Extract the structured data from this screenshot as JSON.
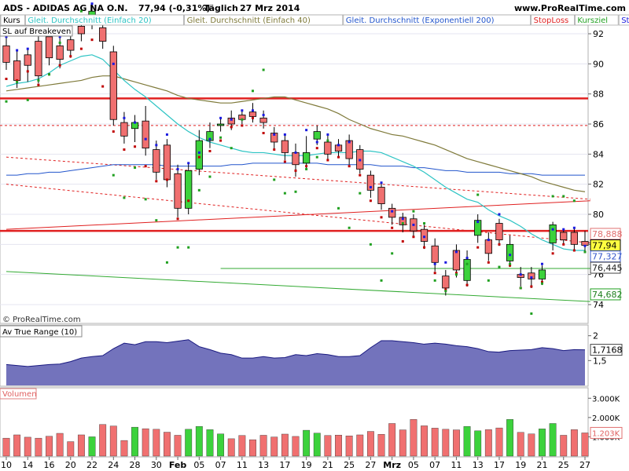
{
  "header": {
    "symbol": "ADS - ADIDAS AG NA O.N.",
    "price": "77,94 (-0,31%)",
    "interval": "Täglich",
    "date": "27 Mrz 2014",
    "site": "www.ProRealTime.com"
  },
  "legend": [
    {
      "label": "Kurs",
      "color": "#000000"
    },
    {
      "label": "Gleit. Durchschnitt (Einfach 20)",
      "color": "#2ec4c4"
    },
    {
      "label": "Gleit. Durchschnitt (Einfach 40)",
      "color": "#7f7a3a"
    },
    {
      "label": "Gleit. Durchschnitt (Exponentiell 200)",
      "color": "#2255cc"
    },
    {
      "label": "StopLoss",
      "color": "#e02020"
    },
    {
      "label": "Kursziel",
      "color": "#22a022"
    },
    {
      "label": "StopBuy",
      "color": "#2020e0"
    }
  ],
  "sl_label": "SL auf Breakeven",
  "copyright": "© ProRealTime.com",
  "price_badges": {
    "last": "77,94",
    "b1": "78,888",
    "b2": "77,327",
    "b3": "76,445",
    "b4": "74,682"
  },
  "price_ticks": [
    "92",
    "90",
    "88",
    "86",
    "84",
    "82",
    "80",
    "78",
    "76",
    "74"
  ],
  "atr": {
    "title": "Av True Range (10)",
    "value": "1,7168",
    "ticks": [
      "2",
      "1,5"
    ]
  },
  "volume": {
    "title": "Volumen",
    "value": "1.203K",
    "ticks": [
      "3.000K",
      "2.000K",
      "1.000K"
    ]
  },
  "x_labels": [
    "10",
    "14",
    "16",
    "20",
    "22",
    "24",
    "28",
    "30",
    "Feb",
    "05",
    "07",
    "11",
    "13",
    "17",
    "19",
    "21",
    "25",
    "27",
    "Mrz",
    "05",
    "07",
    "11",
    "13",
    "17",
    "19",
    "21",
    "25",
    "27"
  ],
  "colors": {
    "up": "#3cd23c",
    "down": "#f07070",
    "sma20": "#2ec4c4",
    "sma40": "#7f7a3a",
    "ema200": "#2255cc",
    "red": "#e02020",
    "green": "#33aa33",
    "atr_fill": "#5b5bb0"
  },
  "chart_data": {
    "type": "candlestick",
    "dates": [
      "10",
      "13",
      "14",
      "15",
      "16",
      "17",
      "20",
      "21",
      "22",
      "23",
      "24",
      "27",
      "28",
      "29",
      "30",
      "31",
      "Feb",
      "04",
      "05",
      "06",
      "07",
      "10",
      "11",
      "12",
      "13",
      "14",
      "17",
      "18",
      "19",
      "20",
      "21",
      "24",
      "25",
      "26",
      "27",
      "28",
      "Mrz",
      "04",
      "05",
      "06",
      "07",
      "10",
      "11",
      "12",
      "13",
      "14",
      "17",
      "18",
      "19",
      "20",
      "21",
      "24",
      "25",
      "26",
      "27"
    ],
    "open": [
      91.2,
      90.2,
      90.6,
      91.5,
      91.8,
      91.2,
      91.6,
      92.5,
      92.8,
      92.4,
      90.8,
      86.1,
      85.7,
      86.2,
      84.3,
      84.6,
      82.7,
      80.4,
      83.0,
      84.9,
      85.9,
      86.4,
      86.6,
      86.8,
      86.4,
      85.4,
      84.9,
      84.1,
      83.4,
      85.0,
      84.8,
      84.6,
      84.9,
      84.3,
      82.6,
      81.8,
      80.4,
      79.8,
      79.7,
      79.0,
      77.9,
      75.9,
      77.6,
      75.6,
      78.6,
      78.3,
      79.4,
      76.9,
      76.0,
      76.1,
      75.7,
      78.1,
      78.8,
      78.8,
      78.2
    ],
    "close": [
      90.1,
      88.9,
      89.9,
      89.2,
      90.4,
      90.3,
      90.9,
      92.0,
      93.5,
      91.5,
      86.3,
      85.2,
      86.1,
      84.4,
      82.8,
      82.3,
      80.4,
      82.9,
      84.9,
      85.5,
      86.0,
      86.0,
      86.3,
      86.5,
      86.1,
      84.8,
      84.1,
      83.3,
      84.1,
      85.5,
      84.0,
      84.2,
      83.7,
      83.0,
      81.6,
      80.7,
      79.8,
      79.3,
      78.9,
      78.2,
      76.8,
      75.1,
      76.3,
      77.0,
      79.6,
      77.4,
      78.3,
      78.0,
      75.8,
      75.7,
      76.3,
      79.3,
      78.3,
      78.0,
      77.94
    ],
    "high": [
      91.8,
      90.9,
      91.0,
      92.0,
      92.3,
      91.8,
      92.3,
      93.0,
      93.9,
      93.0,
      91.2,
      86.8,
      86.6,
      87.2,
      84.9,
      85.0,
      83.3,
      83.4,
      85.6,
      86.1,
      86.4,
      86.9,
      86.9,
      87.4,
      86.9,
      85.8,
      85.3,
      84.7,
      85.2,
      85.9,
      85.3,
      85.0,
      85.3,
      84.6,
      82.9,
      82.1,
      80.7,
      80.1,
      80.0,
      79.3,
      78.4,
      76.3,
      78.0,
      77.6,
      80.0,
      78.8,
      79.7,
      78.6,
      76.5,
      76.5,
      76.6,
      79.5,
      79.0,
      79.1,
      78.9
    ],
    "low": [
      89.6,
      88.4,
      88.8,
      88.7,
      89.9,
      89.7,
      90.4,
      91.5,
      92.3,
      91.0,
      85.9,
      84.7,
      84.8,
      83.9,
      82.3,
      81.8,
      79.8,
      80.0,
      82.6,
      84.4,
      85.5,
      85.6,
      86.0,
      86.1,
      85.7,
      84.3,
      83.6,
      82.5,
      83.0,
      84.6,
      83.6,
      83.8,
      83.3,
      82.7,
      81.1,
      80.3,
      79.3,
      78.8,
      78.5,
      77.7,
      76.2,
      74.6,
      75.8,
      75.2,
      78.1,
      76.9,
      77.9,
      76.5,
      75.2,
      75.1,
      75.3,
      77.6,
      78.0,
      77.6,
      77.5
    ],
    "sma20": [
      88.5,
      88.7,
      88.8,
      89.0,
      89.4,
      89.9,
      90.2,
      90.5,
      90.6,
      90.3,
      89.6,
      88.9,
      88.3,
      87.8,
      87.2,
      86.6,
      86.0,
      85.5,
      85.1,
      84.8,
      84.6,
      84.4,
      84.2,
      84.1,
      84.1,
      84.0,
      83.9,
      83.9,
      83.9,
      84.0,
      84.1,
      84.1,
      84.1,
      84.2,
      84.2,
      84.1,
      83.8,
      83.5,
      83.2,
      82.8,
      82.3,
      81.8,
      81.4,
      81.0,
      80.8,
      80.3,
      79.9,
      79.6,
      79.2,
      78.7,
      78.3,
      78.0,
      77.7,
      77.6,
      77.6
    ],
    "sma40": [
      88.2,
      88.3,
      88.4,
      88.5,
      88.6,
      88.7,
      88.8,
      88.9,
      89.1,
      89.2,
      89.2,
      89.0,
      88.8,
      88.6,
      88.4,
      88.2,
      87.9,
      87.7,
      87.6,
      87.5,
      87.4,
      87.4,
      87.5,
      87.6,
      87.7,
      87.8,
      87.8,
      87.6,
      87.4,
      87.2,
      87.0,
      86.7,
      86.3,
      86.0,
      85.7,
      85.5,
      85.3,
      85.2,
      85.0,
      84.8,
      84.6,
      84.3,
      84.0,
      83.7,
      83.5,
      83.3,
      83.1,
      82.9,
      82.7,
      82.5,
      82.2,
      82.0,
      81.8,
      81.6,
      81.5
    ],
    "ema200": [
      82.6,
      82.6,
      82.7,
      82.7,
      82.8,
      82.8,
      82.9,
      83.0,
      83.1,
      83.2,
      83.3,
      83.3,
      83.3,
      83.3,
      83.3,
      83.2,
      83.2,
      83.2,
      83.2,
      83.2,
      83.2,
      83.3,
      83.3,
      83.4,
      83.4,
      83.4,
      83.4,
      83.4,
      83.4,
      83.4,
      83.3,
      83.3,
      83.3,
      83.3,
      83.3,
      83.2,
      83.2,
      83.2,
      83.1,
      83.1,
      83.0,
      82.9,
      82.9,
      82.8,
      82.8,
      82.8,
      82.8,
      82.7,
      82.7,
      82.7,
      82.6,
      82.6,
      82.6,
      82.6,
      82.6
    ],
    "stoploss_markers": [
      89.0,
      88.9,
      89.5,
      88.6,
      89.3,
      89.9,
      90.5,
      91.0,
      91.6,
      88.5,
      85.5,
      84.3,
      84.5,
      83.2,
      82.2,
      82.3,
      79.7,
      80.9,
      83.8,
      84.2,
      84.9,
      85.8,
      85.9,
      86.4,
      85.4,
      84.3,
      83.5,
      82.9,
      83.2,
      84.4,
      83.6,
      83.8,
      83.2,
      82.6,
      80.9,
      79.8,
      79.1,
      78.2,
      78.5,
      77.8,
      76.1,
      75.0,
      76.1,
      75.3,
      77.8,
      76.8,
      78.0,
      76.6,
      75.1,
      75.2,
      75.5,
      77.4,
      78.0,
      77.6,
      77.5
    ],
    "stopbuy_markers": [
      91.8,
      90.9,
      91.0,
      92.0,
      92.3,
      91.8,
      92.3,
      93.0,
      94.0,
      93.0,
      90.0,
      86.4,
      86.1,
      85.0,
      84.6,
      85.3,
      83.0,
      83.4,
      84.1,
      85.0,
      86.4,
      86.3,
      86.9,
      86.9,
      86.6,
      85.3,
      85.3,
      84.1,
      85.6,
      84.8,
      85.3,
      84.6,
      84.8,
      83.6,
      81.8,
      82.1,
      80.2,
      79.7,
      79.3,
      78.5,
      76.7,
      76.8,
      77.5,
      77.1,
      79.5,
      78.3,
      80.0,
      77.3,
      76.0,
      75.8,
      76.7,
      79.0,
      79.0,
      79.1,
      77.9
    ],
    "kursziel_markers": [
      87.5,
      88.8,
      87.6,
      88.9,
      89.3,
      91.4,
      92.4,
      93.5,
      95.9,
      92.9,
      82.6,
      81.1,
      83.1,
      81.0,
      79.6,
      76.8,
      77.8,
      77.8,
      81.6,
      82.5,
      85.1,
      84.4,
      86.3,
      88.2,
      89.6,
      82.3,
      81.4,
      81.5,
      83.0,
      83.8,
      84.9,
      80.4,
      79.1,
      81.4,
      78.0,
      75.6,
      77.4,
      79.4,
      80.2,
      79.4,
      75.6,
      74.9,
      76.0,
      76.7,
      81.3,
      75.6,
      76.5,
      76.7,
      75.1,
      73.4,
      75.4,
      81.2,
      81.2,
      80.9,
      77.5
    ],
    "horizontal_lines": [
      87.7,
      78.9
    ],
    "dashed_line": [
      85.9,
      85.9
    ],
    "trendline_red_solid": [
      [
        0,
        79.0
      ],
      [
        54,
        80.9
      ]
    ],
    "trendline_red_dashed_upper": [
      [
        0,
        83.8
      ],
      [
        54,
        81.0
      ]
    ],
    "trendline_red_dashed_lower": [
      [
        0,
        82.0
      ],
      [
        54,
        78.1
      ]
    ],
    "trendline_green": [
      [
        0,
        76.2
      ],
      [
        54,
        74.2
      ]
    ],
    "target_line_green": [
      [
        20,
        76.4
      ],
      [
        54,
        76.4
      ]
    ],
    "atr": [
      1.42,
      1.4,
      1.38,
      1.4,
      1.42,
      1.43,
      1.48,
      1.55,
      1.58,
      1.6,
      1.74,
      1.85,
      1.82,
      1.88,
      1.88,
      1.86,
      1.89,
      1.92,
      1.78,
      1.72,
      1.65,
      1.62,
      1.55,
      1.55,
      1.58,
      1.55,
      1.56,
      1.62,
      1.6,
      1.64,
      1.62,
      1.58,
      1.58,
      1.6,
      1.76,
      1.9,
      1.9,
      1.88,
      1.86,
      1.83,
      1.85,
      1.83,
      1.8,
      1.78,
      1.74,
      1.68,
      1.67,
      1.7,
      1.71,
      1.72,
      1.76,
      1.74,
      1.7,
      1.72,
      1.7168
    ],
    "atr_ylim": [
      1.0,
      2.2
    ],
    "volume": [
      930,
      1100,
      980,
      930,
      1030,
      1180,
      750,
      1100,
      1000,
      1640,
      1560,
      810,
      1500,
      1420,
      1390,
      1240,
      1080,
      1390,
      1540,
      1370,
      1150,
      900,
      1070,
      850,
      1080,
      990,
      1140,
      1020,
      1340,
      1190,
      1070,
      1090,
      1050,
      1100,
      1280,
      1130,
      1690,
      1360,
      1900,
      1570,
      1450,
      1390,
      1360,
      1540,
      1310,
      1370,
      1460,
      1900,
      1230,
      1150,
      1410,
      1690,
      1080,
      1370,
      1203
    ],
    "volume_ylim": [
      0,
      3500
    ],
    "price_ylim": [
      72.8,
      93.2
    ]
  }
}
